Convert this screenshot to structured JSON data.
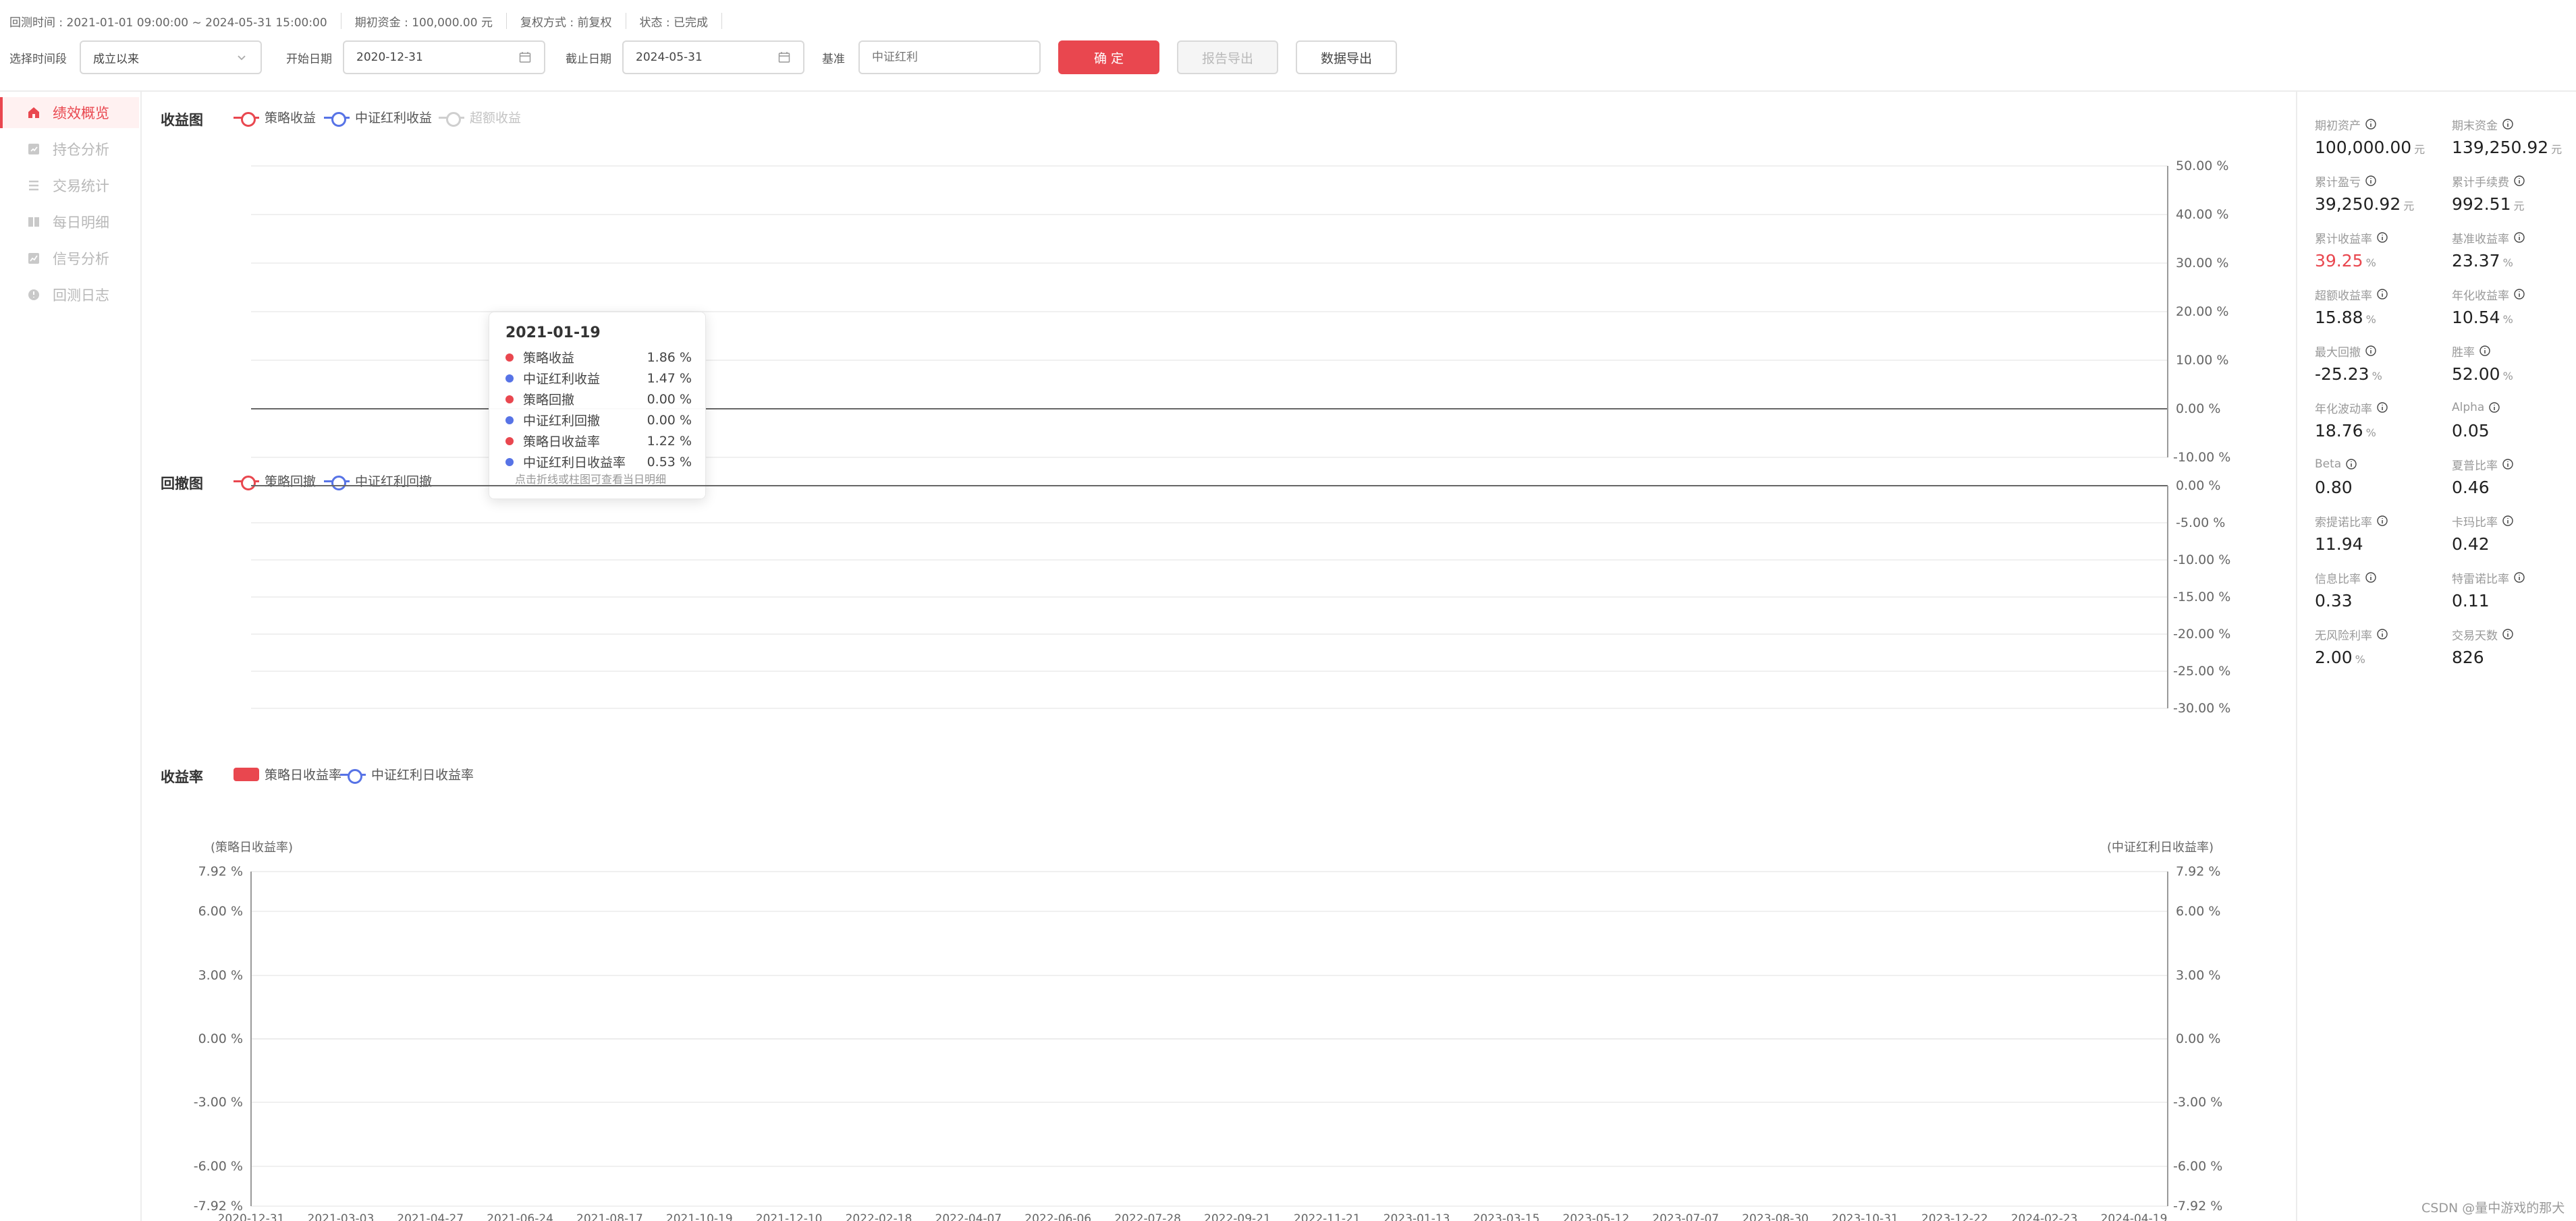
{
  "header": {
    "meta": [
      "回测时间 : 2021-01-01 09:00:00 ~ 2024-05-31 15:00:00",
      "期初资金 : 100,000.00 元",
      "复权方式 : 前复权",
      "状态 : 已完成"
    ],
    "filters": {
      "period_label": "选择时间段",
      "period_value": "成立以来",
      "start_label": "开始日期",
      "start_value": "2020-12-31",
      "end_label": "截止日期",
      "end_value": "2024-05-31",
      "benchmark_label": "基准",
      "benchmark_placeholder": "中证红利"
    },
    "buttons": {
      "confirm": "确 定",
      "report_export": "报告导出",
      "data_export": "数据导出"
    }
  },
  "sidebar": {
    "items": [
      {
        "label": "绩效概览",
        "icon": "home-icon",
        "active": true
      },
      {
        "label": "持仓分析",
        "icon": "position-icon",
        "active": false
      },
      {
        "label": "交易统计",
        "icon": "trade-list-icon",
        "active": false
      },
      {
        "label": "每日明细",
        "icon": "daily-detail-icon",
        "active": false
      },
      {
        "label": "信号分析",
        "icon": "signal-chart-icon",
        "active": false
      },
      {
        "label": "回测日志",
        "icon": "log-icon",
        "active": false
      }
    ]
  },
  "charts": {
    "return_title": "收益图",
    "return_legend": [
      "策略收益",
      "中证红利收益",
      "超额收益"
    ],
    "return_ticks": [
      "50.00 %",
      "40.00 %",
      "30.00 %",
      "20.00 %",
      "10.00 %",
      "0.00 %",
      "-10.00 %"
    ],
    "drawdown_title": "回撤图",
    "drawdown_legend": [
      "策略回撤",
      "中证红利回撤"
    ],
    "drawdown_ticks": [
      "0.00 %",
      "-5.00 %",
      "-10.00 %",
      "-15.00 %",
      "-20.00 %",
      "-25.00 %",
      "-30.00 %"
    ],
    "daily_title": "收益率",
    "daily_legend": [
      "策略日收益率",
      "中证红利日收益率"
    ],
    "daily_left_axis_name": "(策略日收益率)",
    "daily_right_axis_name": "(中证红利日收益率)",
    "daily_ticks": [
      "7.92 %",
      "6.00 %",
      "3.00 %",
      "0.00 %",
      "-3.00 %",
      "-6.00 %",
      "-7.92 %"
    ],
    "x_dates": [
      "2020-12-31",
      "2021-03-03",
      "2021-04-27",
      "2021-06-24",
      "2021-08-17",
      "2021-10-19",
      "2021-12-10",
      "2022-02-18",
      "2022-04-07",
      "2022-06-06",
      "2022-07-28",
      "2022-09-21",
      "2022-11-21",
      "2023-01-13",
      "2023-03-15",
      "2023-05-12",
      "2023-07-07",
      "2023-08-30",
      "2023-10-31",
      "2023-12-22",
      "2024-02-23",
      "2024-04-19"
    ]
  },
  "tooltip": {
    "date": "2021-01-19",
    "rows": [
      {
        "label": "策略收益",
        "value": "1.86 %",
        "color": "#e9474f"
      },
      {
        "label": "中证红利收益",
        "value": "1.47 %",
        "color": "#5773e6"
      },
      {
        "label": "策略回撤",
        "value": "0.00 %",
        "color": "#e9474f"
      },
      {
        "label": "中证红利回撤",
        "value": "0.00 %",
        "color": "#5773e6"
      },
      {
        "label": "策略日收益率",
        "value": "1.22 %",
        "color": "#e9474f"
      },
      {
        "label": "中证红利日收益率",
        "value": "0.53 %",
        "color": "#5773e6"
      }
    ],
    "hint": "点击折线或柱图可查看当日明细"
  },
  "stats": [
    {
      "label": "期初资产",
      "value": "100,000.00",
      "unit": "元"
    },
    {
      "label": "期末资金",
      "value": "139,250.92",
      "unit": "元"
    },
    {
      "label": "累计盈亏",
      "value": "39,250.92",
      "unit": "元"
    },
    {
      "label": "累计手续费",
      "value": "992.51",
      "unit": "元"
    },
    {
      "label": "累计收益率",
      "value": "39.25",
      "unit": "%",
      "red": true
    },
    {
      "label": "基准收益率",
      "value": "23.37",
      "unit": "%"
    },
    {
      "label": "超额收益率",
      "value": "15.88",
      "unit": "%"
    },
    {
      "label": "年化收益率",
      "value": "10.54",
      "unit": "%"
    },
    {
      "label": "最大回撤",
      "value": "-25.23",
      "unit": "%"
    },
    {
      "label": "胜率",
      "value": "52.00",
      "unit": "%"
    },
    {
      "label": "年化波动率",
      "value": "18.76",
      "unit": "%"
    },
    {
      "label": "Alpha",
      "value": "0.05",
      "unit": ""
    },
    {
      "label": "Beta",
      "value": "0.80",
      "unit": ""
    },
    {
      "label": "夏普比率",
      "value": "0.46",
      "unit": ""
    },
    {
      "label": "索提诺比率",
      "value": "11.94",
      "unit": ""
    },
    {
      "label": "卡玛比率",
      "value": "0.42",
      "unit": ""
    },
    {
      "label": "信息比率",
      "value": "0.33",
      "unit": ""
    },
    {
      "label": "特雷诺比率",
      "value": "0.11",
      "unit": ""
    },
    {
      "label": "无风险利率",
      "value": "2.00",
      "unit": "%"
    },
    {
      "label": "交易天数",
      "value": "826",
      "unit": ""
    }
  ],
  "watermark": "CSDN @量中游戏的那犬",
  "colors": {
    "accent": "#e9474f",
    "blue": "#5773e6",
    "green": "#3aa845"
  }
}
